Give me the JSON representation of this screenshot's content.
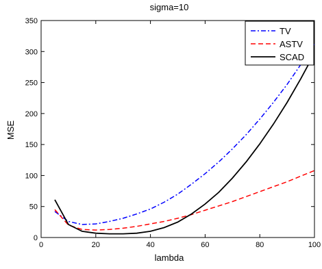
{
  "chart_data": {
    "type": "line",
    "title": "sigma=10",
    "xlabel": "lambda",
    "ylabel": "MSE",
    "xlim": [
      0,
      100
    ],
    "ylim": [
      0,
      350
    ],
    "xticks": [
      0,
      20,
      40,
      60,
      80,
      100
    ],
    "yticks": [
      0,
      50,
      100,
      150,
      200,
      250,
      300,
      350
    ],
    "grid": false,
    "legend_position": "top-right",
    "series": [
      {
        "name": "TV",
        "color": "#0000ff",
        "style": "dash-dot",
        "x": [
          5,
          10,
          15,
          20,
          25,
          30,
          35,
          40,
          45,
          50,
          55,
          60,
          65,
          70,
          75,
          80,
          85,
          90,
          95,
          100
        ],
        "y": [
          42,
          26,
          21,
          22,
          26,
          31,
          38,
          46,
          57,
          70,
          86,
          103,
          122,
          143,
          166,
          191,
          218,
          247,
          279,
          312
        ]
      },
      {
        "name": "ASTV",
        "color": "#ff0000",
        "style": "dashed",
        "x": [
          5,
          10,
          15,
          20,
          25,
          30,
          35,
          40,
          45,
          50,
          55,
          60,
          65,
          70,
          75,
          80,
          85,
          90,
          95,
          100
        ],
        "y": [
          45,
          20,
          13,
          12,
          13,
          15,
          18,
          22,
          26,
          31,
          37,
          44,
          51,
          58,
          66,
          74,
          82,
          90,
          99,
          108
        ]
      },
      {
        "name": "SCAD",
        "color": "#000000",
        "style": "solid",
        "x": [
          5,
          10,
          15,
          20,
          25,
          30,
          35,
          40,
          45,
          50,
          55,
          60,
          65,
          70,
          75,
          80,
          85,
          90,
          95,
          100
        ],
        "y": [
          61,
          21,
          10,
          7,
          6,
          6,
          7,
          10,
          16,
          25,
          38,
          54,
          73,
          96,
          122,
          151,
          183,
          218,
          256,
          297
        ]
      }
    ]
  }
}
